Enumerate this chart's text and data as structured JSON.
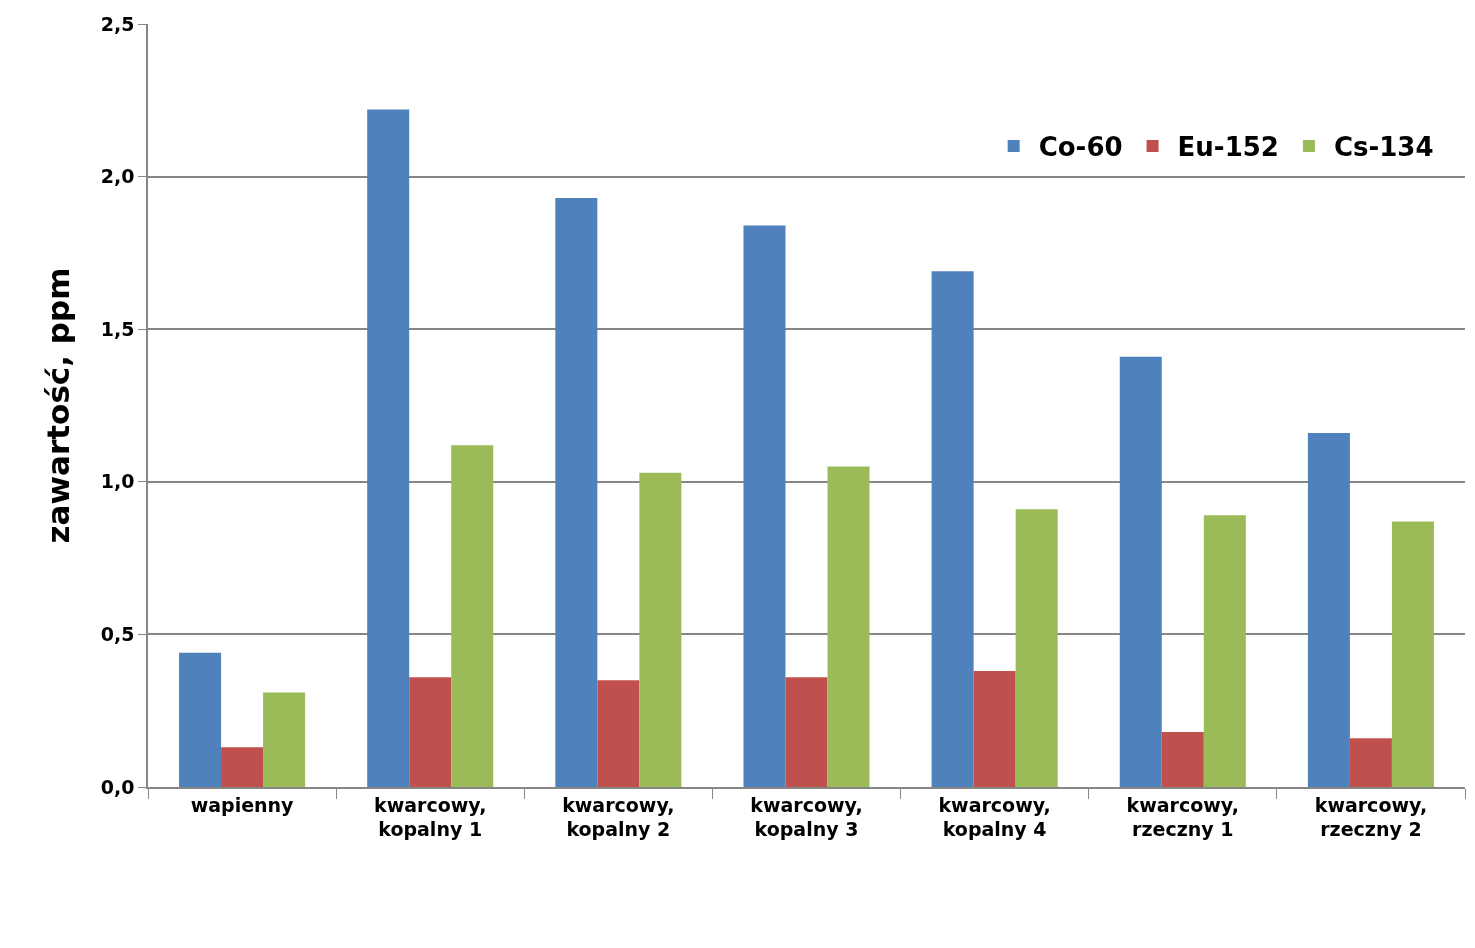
{
  "chart_data": {
    "type": "bar",
    "ylabel": "zawartość, ppm",
    "categories": [
      "wapienny",
      "kwarcowy,\nkopalny 1",
      "kwarcowy,\nkopalny 2",
      "kwarcowy,\nkopalny 3",
      "kwarcowy,\nkopalny 4",
      "kwarcowy,\nrzeczny 1",
      "kwarcowy,\nrzeczny 2"
    ],
    "series": [
      {
        "name": "Co-60",
        "color": "#4f81bd",
        "values": [
          0.44,
          2.22,
          1.93,
          1.84,
          1.69,
          1.41,
          1.16
        ]
      },
      {
        "name": "Eu-152",
        "color": "#c0504d",
        "values": [
          0.13,
          0.36,
          0.35,
          0.36,
          0.38,
          0.18,
          0.16
        ]
      },
      {
        "name": "Cs-134",
        "color": "#9bbb59",
        "values": [
          0.31,
          1.12,
          1.03,
          1.05,
          0.91,
          0.89,
          0.87
        ]
      }
    ],
    "ylim": [
      0,
      2.5
    ],
    "yticks": [
      {
        "value": 0,
        "label": "0,0"
      },
      {
        "value": 0.5,
        "label": "0,5"
      },
      {
        "value": 1,
        "label": "1,0"
      },
      {
        "value": 1.5,
        "label": "1,5"
      },
      {
        "value": 2,
        "label": "2,0"
      },
      {
        "value": 2.5,
        "label": "2,5"
      }
    ],
    "grid": "y",
    "legend": "top right"
  }
}
